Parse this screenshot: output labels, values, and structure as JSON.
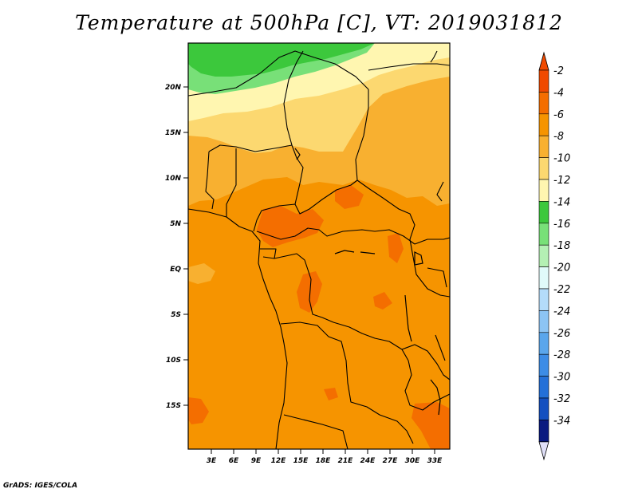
{
  "title": "Temperature at 500hPa [C], VT: 2019031812",
  "credit": "GrADS: IGES/COLA",
  "map": {
    "lat_labels": [
      "20N",
      "15N",
      "10N",
      "5N",
      "EQ",
      "5S",
      "10S",
      "15S"
    ],
    "lon_labels": [
      "3E",
      "6E",
      "9E",
      "12E",
      "15E",
      "18E",
      "21E",
      "24E",
      "27E",
      "30E",
      "33E"
    ]
  },
  "colorbar": {
    "labels": [
      "-2",
      "-4",
      "-6",
      "-8",
      "-10",
      "-12",
      "-14",
      "-16",
      "-18",
      "-20",
      "-22",
      "-24",
      "-26",
      "-28",
      "-30",
      "-32",
      "-34"
    ],
    "colors": [
      "#f04a00",
      "#f46e00",
      "#f69400",
      "#f8b030",
      "#fcd870",
      "#fff6b0",
      "#3cc83c",
      "#78e078",
      "#b4f0b4",
      "#e0fafa",
      "#b4dcfa",
      "#8cc4f4",
      "#5aa6ec",
      "#3c8ce6",
      "#2470d8",
      "#1450c0",
      "#0a1a80"
    ],
    "under_color": "#e0e0f8",
    "over_color": "#f04a00"
  },
  "colors": {
    "orange_main": "#f69400",
    "orange_light": "#f8b030",
    "orange_dark": "#f46e00",
    "red_orange": "#f04a00",
    "yellow": "#fcd870",
    "pale_yellow": "#fff6b0",
    "green": "#3cc83c",
    "light_green": "#78e078"
  }
}
